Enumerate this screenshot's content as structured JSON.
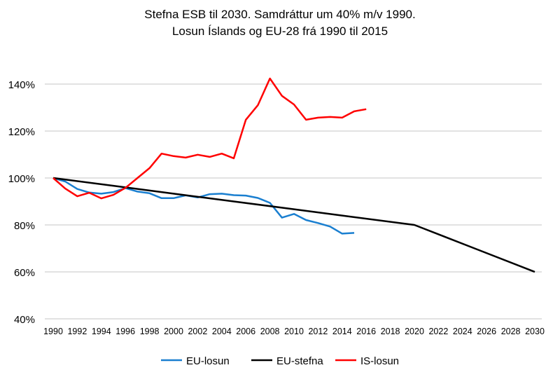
{
  "chart_data": {
    "type": "line",
    "title": [
      "Stefna ESB til 2030. Samdráttur um 40% m/v 1990.",
      "Losun Íslands og EU-28 frá 1990 til 2015"
    ],
    "xlabel": "",
    "ylabel": "",
    "ylim": [
      40,
      140
    ],
    "yticks": [
      "40%",
      "60%",
      "80%",
      "100%",
      "120%",
      "140%"
    ],
    "yticks_values": [
      40,
      60,
      80,
      100,
      120,
      140
    ],
    "xlim": [
      1990,
      2030
    ],
    "xticks": [
      "1990",
      "1992",
      "1994",
      "1996",
      "1998",
      "2000",
      "2002",
      "2004",
      "2006",
      "2008",
      "2010",
      "2012",
      "2014",
      "2016",
      "2018",
      "2020",
      "2022",
      "2024",
      "2026",
      "2028",
      "2030"
    ],
    "grid": "horizontal",
    "legend": "bottom",
    "series": [
      {
        "name": "EU-losun",
        "color": "#1a7fd0",
        "x": [
          1990,
          1991,
          1992,
          1993,
          1994,
          1995,
          1996,
          1997,
          1998,
          1999,
          2000,
          2001,
          2002,
          2003,
          2004,
          2005,
          2006,
          2007,
          2008,
          2009,
          2010,
          2011,
          2012,
          2013,
          2014,
          2015
        ],
        "values": [
          100,
          98.5,
          95.3,
          93.8,
          93.3,
          94,
          95.7,
          94.2,
          93.5,
          91.4,
          91.4,
          92.6,
          91.7,
          93.1,
          93.3,
          92.7,
          92.5,
          91.5,
          89.4,
          83.1,
          84.7,
          82.1,
          80.8,
          79.3,
          76.3,
          76.6
        ]
      },
      {
        "name": "EU-stefna",
        "color": "#000000",
        "x": [
          1990,
          1995,
          2000,
          2005,
          2010,
          2015,
          2020,
          2025,
          2030
        ],
        "values": [
          100,
          96.7,
          93.3,
          90,
          86.7,
          83.3,
          80,
          70,
          60
        ]
      },
      {
        "name": "IS-losun",
        "color": "#ff0000",
        "x": [
          1990,
          1991,
          1992,
          1993,
          1994,
          1995,
          1996,
          1997,
          1998,
          1999,
          2000,
          2001,
          2002,
          2003,
          2004,
          2005,
          2006,
          2007,
          2008,
          2009,
          2010,
          2011,
          2012,
          2013,
          2014,
          2015,
          2016
        ],
        "values": [
          100,
          95.5,
          92.2,
          93.7,
          91.3,
          92.8,
          95.8,
          100,
          104.2,
          110.4,
          109.3,
          108.7,
          109.9,
          109,
          110.4,
          108.4,
          124.8,
          131,
          142.4,
          135,
          131.3,
          124.8,
          125.7,
          126,
          125.7,
          128.4,
          129.3
        ]
      }
    ]
  }
}
